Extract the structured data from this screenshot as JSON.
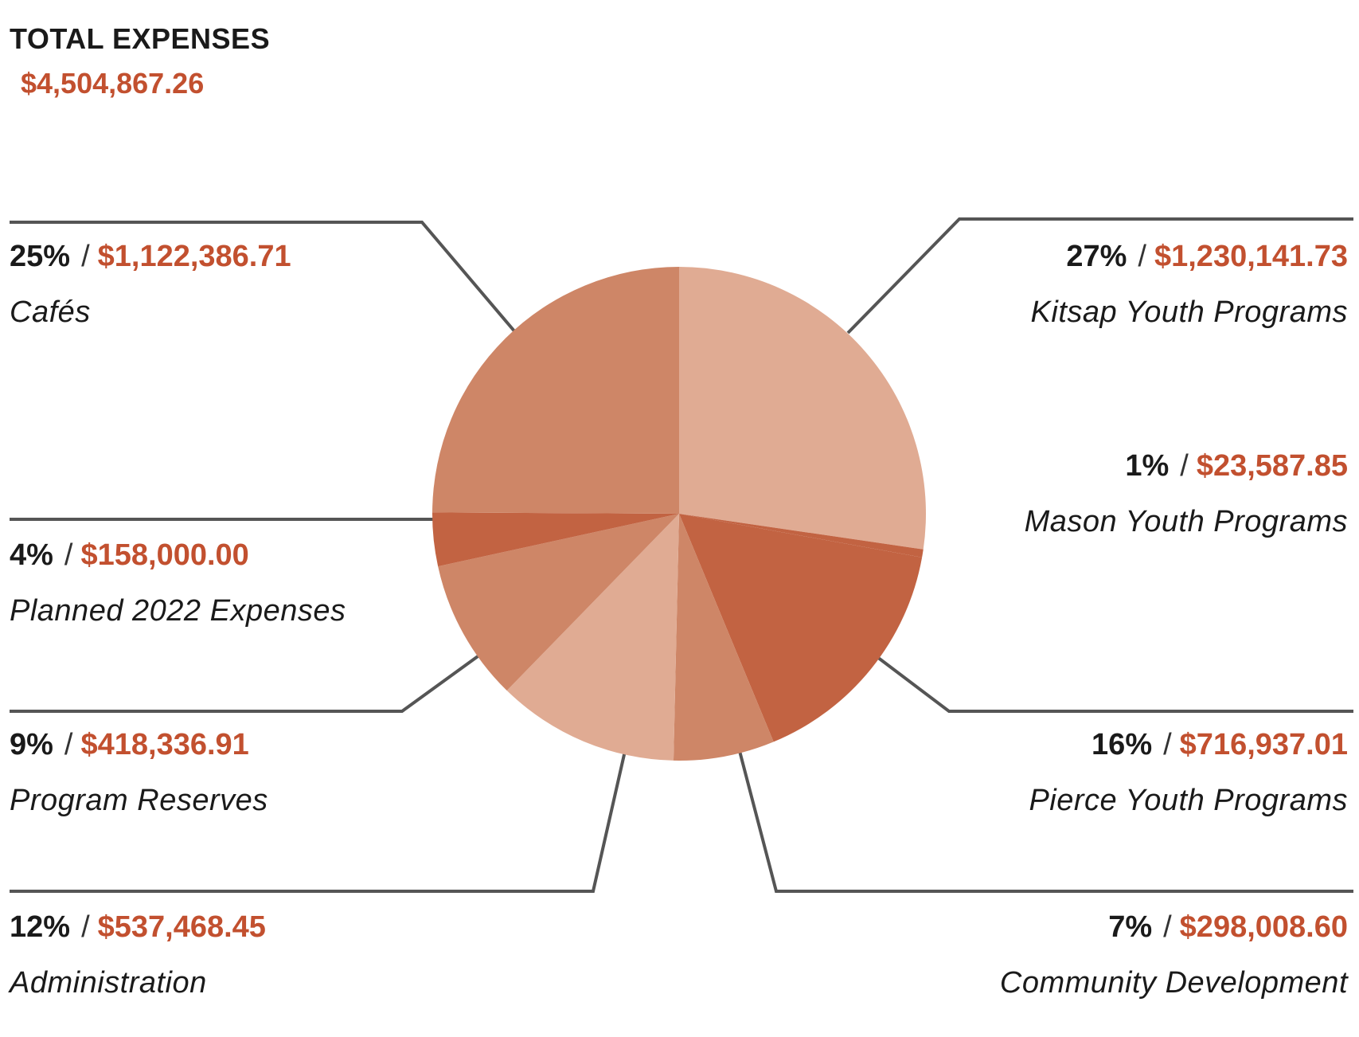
{
  "header": {
    "title": "TOTAL EXPENSES",
    "total": "$4,504,867.26"
  },
  "separator": "/",
  "colors": {
    "light": "#e0ab93",
    "medium": "#ce8667",
    "dark": "#c26342",
    "accent": "#c2502f",
    "leader": "#555555"
  },
  "chart_data": {
    "type": "pie",
    "title": "TOTAL EXPENSES",
    "total": "$4,504,867.26",
    "slices": [
      {
        "name": "Kitsap Youth Programs",
        "percent": "27%",
        "amount": "$1,230,141.73",
        "value": 1230141.73
      },
      {
        "name": "Mason Youth Programs",
        "percent": "1%",
        "amount": "$23,587.85",
        "value": 23587.85
      },
      {
        "name": "Pierce Youth Programs",
        "percent": "16%",
        "amount": "$716,937.01",
        "value": 716937.01
      },
      {
        "name": "Community Development",
        "percent": "7%",
        "amount": "$298,008.60",
        "value": 298008.6
      },
      {
        "name": "Administration",
        "percent": "12%",
        "amount": "$537,468.45",
        "value": 537468.45
      },
      {
        "name": "Program Reserves",
        "percent": "9%",
        "amount": "$418,336.91",
        "value": 418336.91
      },
      {
        "name": "Planned 2022 Expenses",
        "percent": "4%",
        "amount": "$158,000.00",
        "value": 158000
      },
      {
        "name": "Cafés",
        "percent": "25%",
        "amount": "$1,122,386.71",
        "value": 1122386.71
      }
    ]
  }
}
